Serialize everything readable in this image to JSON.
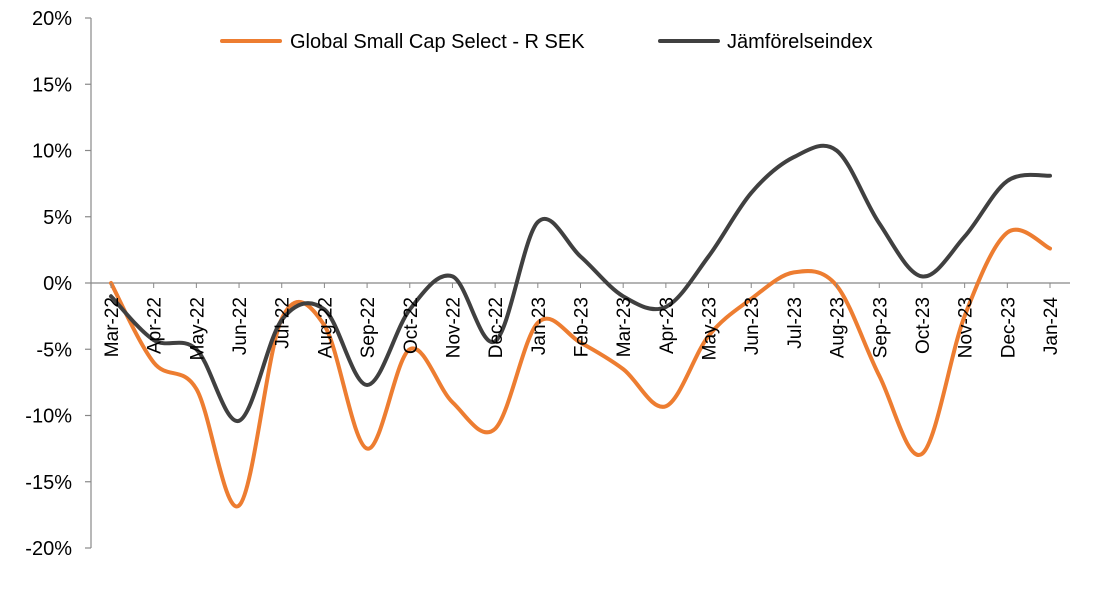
{
  "chart_data": {
    "type": "line",
    "categories": [
      "Mar-22",
      "Apr-22",
      "May-22",
      "Jun-22",
      "Jul-22",
      "Aug-22",
      "Sep-22",
      "Oct-22",
      "Nov-22",
      "Dec-22",
      "Jan-23",
      "Feb-23",
      "Mar-23",
      "Apr-23",
      "May-23",
      "Jun-23",
      "Jul-23",
      "Aug-23",
      "Sep-23",
      "Oct-23",
      "Nov-23",
      "Dec-23",
      "Jan-24"
    ],
    "series": [
      {
        "name": "Global Small Cap Select - R SEK",
        "color": "#ed7d31",
        "values": [
          0.0,
          -6.0,
          -8.0,
          -16.8,
          -2.7,
          -3.2,
          -12.5,
          -5.0,
          -9.0,
          -11.0,
          -3.0,
          -4.5,
          -6.5,
          -9.3,
          -4.0,
          -1.2,
          0.8,
          -0.2,
          -7.0,
          -12.9,
          -2.5,
          3.8,
          2.6
        ]
      },
      {
        "name": "Jämförelseindex",
        "color": "#404040",
        "values": [
          -1.0,
          -4.3,
          -5.0,
          -10.4,
          -2.8,
          -2.0,
          -7.7,
          -2.0,
          0.5,
          -4.4,
          4.6,
          2.0,
          -1.0,
          -1.8,
          2.0,
          6.8,
          9.5,
          10.0,
          4.5,
          0.5,
          3.5,
          7.7,
          8.1
        ]
      }
    ],
    "yticks": [
      "20%",
      "15%",
      "10%",
      "5%",
      "0%",
      "-5%",
      "-10%",
      "-15%",
      "-20%"
    ],
    "ylim": [
      -20,
      20
    ],
    "grid": false,
    "legend_position": "top"
  }
}
